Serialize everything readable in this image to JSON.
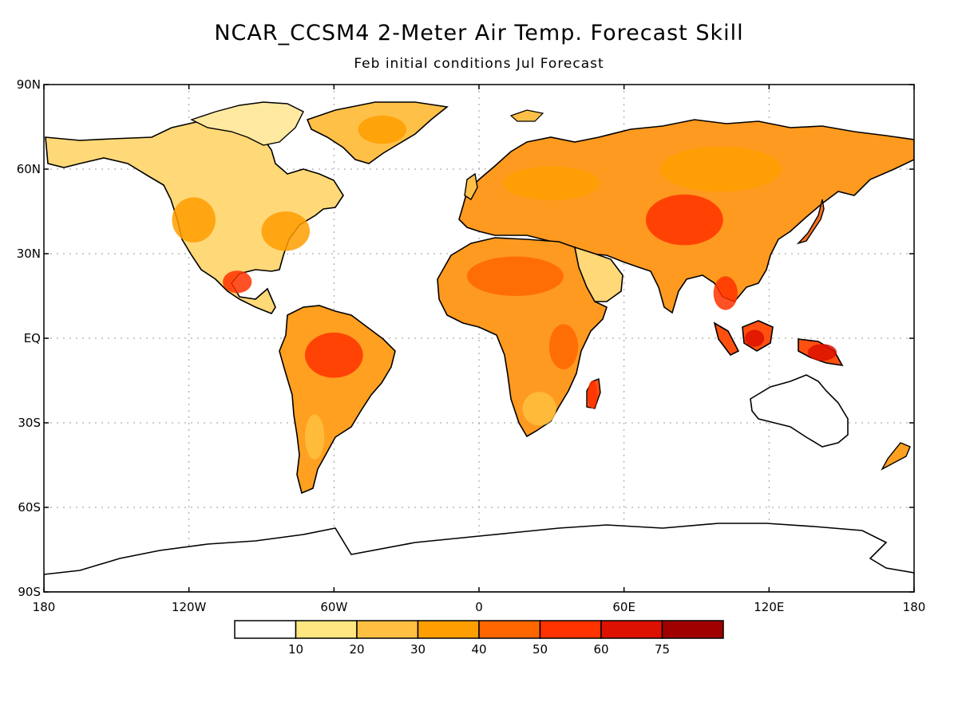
{
  "title": "NCAR_CCSM4 2-Meter Air Temp. Forecast Skill",
  "subtitle": "Feb initial conditions  Jul Forecast",
  "map": {
    "projection": "equirectangular",
    "lon_range": [
      -180,
      180
    ],
    "lat_range": [
      -90,
      90
    ],
    "lat_ticks": [
      {
        "value": 90,
        "label": "90N"
      },
      {
        "value": 60,
        "label": "60N"
      },
      {
        "value": 30,
        "label": "30N"
      },
      {
        "value": 0,
        "label": "EQ"
      },
      {
        "value": -30,
        "label": "30S"
      },
      {
        "value": -60,
        "label": "60S"
      },
      {
        "value": -90,
        "label": "90S"
      }
    ],
    "lon_ticks": [
      {
        "value": -180,
        "label": "180"
      },
      {
        "value": -120,
        "label": "120W"
      },
      {
        "value": -60,
        "label": "60W"
      },
      {
        "value": 0,
        "label": "0"
      },
      {
        "value": 60,
        "label": "60E"
      },
      {
        "value": 120,
        "label": "120E"
      },
      {
        "value": 180,
        "label": "180"
      }
    ],
    "grid": true,
    "coastline_color": "#000000"
  },
  "colorbar": {
    "levels": [
      "10",
      "20",
      "30",
      "40",
      "50",
      "60",
      "75"
    ],
    "colors": [
      "#ffffff",
      "#ffe680",
      "#ffbf40",
      "#ff9e00",
      "#ff6600",
      "#ff3300",
      "#dd1100",
      "#a00000"
    ]
  },
  "skill_regions": [
    {
      "name": "north-america-west",
      "lon": -118,
      "lat": 42,
      "rx": 9,
      "ry": 8,
      "level": 3
    },
    {
      "name": "north-america-east",
      "lon": -80,
      "lat": 38,
      "rx": 10,
      "ry": 7,
      "level": 3
    },
    {
      "name": "mexico",
      "lon": -100,
      "lat": 20,
      "rx": 6,
      "ry": 4,
      "level": 5
    },
    {
      "name": "amazon",
      "lon": -60,
      "lat": -6,
      "rx": 12,
      "ry": 8,
      "level": 5
    },
    {
      "name": "sahara",
      "lon": 15,
      "lat": 22,
      "rx": 20,
      "ry": 7,
      "level": 4
    },
    {
      "name": "east-africa",
      "lon": 35,
      "lat": -3,
      "rx": 6,
      "ry": 8,
      "level": 4
    },
    {
      "name": "central-asia",
      "lon": 85,
      "lat": 42,
      "rx": 16,
      "ry": 9,
      "level": 5
    },
    {
      "name": "siberia",
      "lon": 100,
      "lat": 60,
      "rx": 25,
      "ry": 8,
      "level": 3
    },
    {
      "name": "europe",
      "lon": 30,
      "lat": 55,
      "rx": 20,
      "ry": 6,
      "level": 3
    },
    {
      "name": "indochina",
      "lon": 102,
      "lat": 16,
      "rx": 5,
      "ry": 6,
      "level": 5
    },
    {
      "name": "borneo",
      "lon": 114,
      "lat": 0,
      "rx": 4,
      "ry": 3,
      "level": 6
    },
    {
      "name": "new-guinea",
      "lon": 142,
      "lat": -5,
      "rx": 6,
      "ry": 3,
      "level": 6
    },
    {
      "name": "madagascar",
      "lon": 47,
      "lat": -20,
      "rx": 2,
      "ry": 5,
      "level": 5
    },
    {
      "name": "southern-africa",
      "lon": 25,
      "lat": -25,
      "rx": 7,
      "ry": 6,
      "level": 2
    },
    {
      "name": "patagonia",
      "lon": -68,
      "lat": -35,
      "rx": 4,
      "ry": 8,
      "level": 2
    },
    {
      "name": "greenland",
      "lon": -40,
      "lat": 74,
      "rx": 10,
      "ry": 5,
      "level": 3
    }
  ]
}
